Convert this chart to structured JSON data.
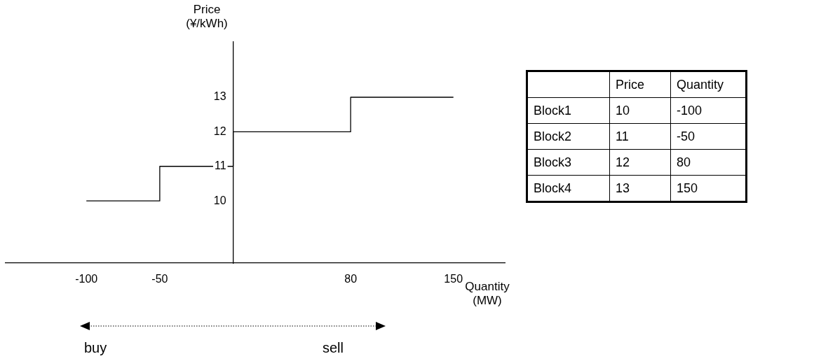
{
  "chart_data": [
    {
      "type": "step",
      "xlabel": "Quantity (MW)",
      "ylabel": "Price (¥/kWh)",
      "x": [
        -100,
        -50,
        0,
        80,
        150
      ],
      "series": [
        {
          "color": "#000000",
          "values": [
            10,
            11,
            12,
            13,
            13
          ]
        }
      ],
      "xlim": [
        -155,
        185
      ],
      "xticks": [
        -100,
        -50,
        80,
        150
      ],
      "ylim": [
        8.2,
        14.6
      ],
      "yticks": [
        10,
        11,
        12,
        13
      ],
      "grid": false,
      "legend": false,
      "marker": "none",
      "line_style": "solid",
      "annotations": [
        "buy",
        "sell"
      ]
    },
    {
      "type": "other",
      "categories": [
        "Block1",
        "Block2",
        "Block3",
        "Block4"
      ],
      "data_labels": true,
      "series": [
        {
          "name": "Price",
          "values": [
            10,
            11,
            12,
            13
          ]
        },
        {
          "name": "Quantity",
          "values": [
            -100,
            -50,
            80,
            150
          ]
        }
      ]
    }
  ]
}
